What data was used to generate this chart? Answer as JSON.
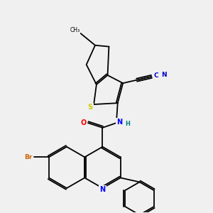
{
  "background_color": "#f0f0f0",
  "atom_colors": {
    "S": "#cccc00",
    "N": "#0000ff",
    "O": "#ff0000",
    "Br": "#cc6600",
    "C": "#000000",
    "H": "#008080",
    "CN_color": "#0000cd"
  }
}
